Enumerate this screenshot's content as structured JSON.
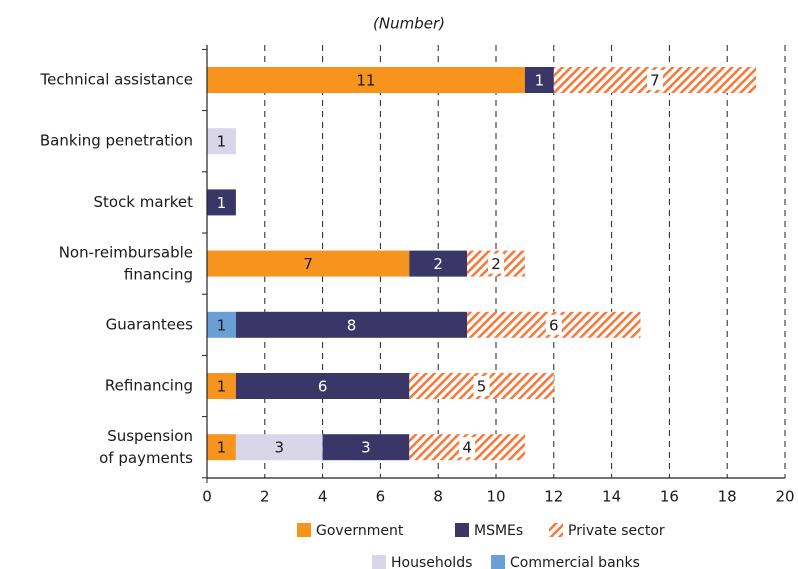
{
  "chart_data": {
    "type": "stacked_barh",
    "subtitle": "(Number)",
    "categories": [
      "Technical assistance",
      "Banking penetration",
      "Stock market",
      "Non-reimbursable financing",
      "Guarantees",
      "Refinancing",
      "Suspension of payments"
    ],
    "series": [
      {
        "name": "Government",
        "color": "#f7941d",
        "values": [
          11,
          null,
          null,
          7,
          null,
          1,
          1
        ]
      },
      {
        "name": "MSMEs",
        "color": "#3b3668",
        "values": [
          1,
          null,
          1,
          2,
          8,
          6,
          3
        ]
      },
      {
        "name": "Private sector",
        "color": "#f47a3e",
        "hatch": true,
        "values": [
          7,
          null,
          null,
          2,
          6,
          5,
          4
        ]
      },
      {
        "name": "Households",
        "color": "#d9d6ea",
        "values": [
          null,
          1,
          null,
          null,
          null,
          null,
          3
        ]
      },
      {
        "name": "Commercial banks",
        "color": "#6a9fd6",
        "values": [
          null,
          null,
          null,
          null,
          1,
          null,
          null
        ]
      }
    ],
    "xlim": [
      0,
      20
    ],
    "xticks": [
      0,
      2,
      4,
      6,
      8,
      10,
      12,
      14,
      16,
      18,
      20
    ],
    "grid": true,
    "legend": "bottom"
  }
}
